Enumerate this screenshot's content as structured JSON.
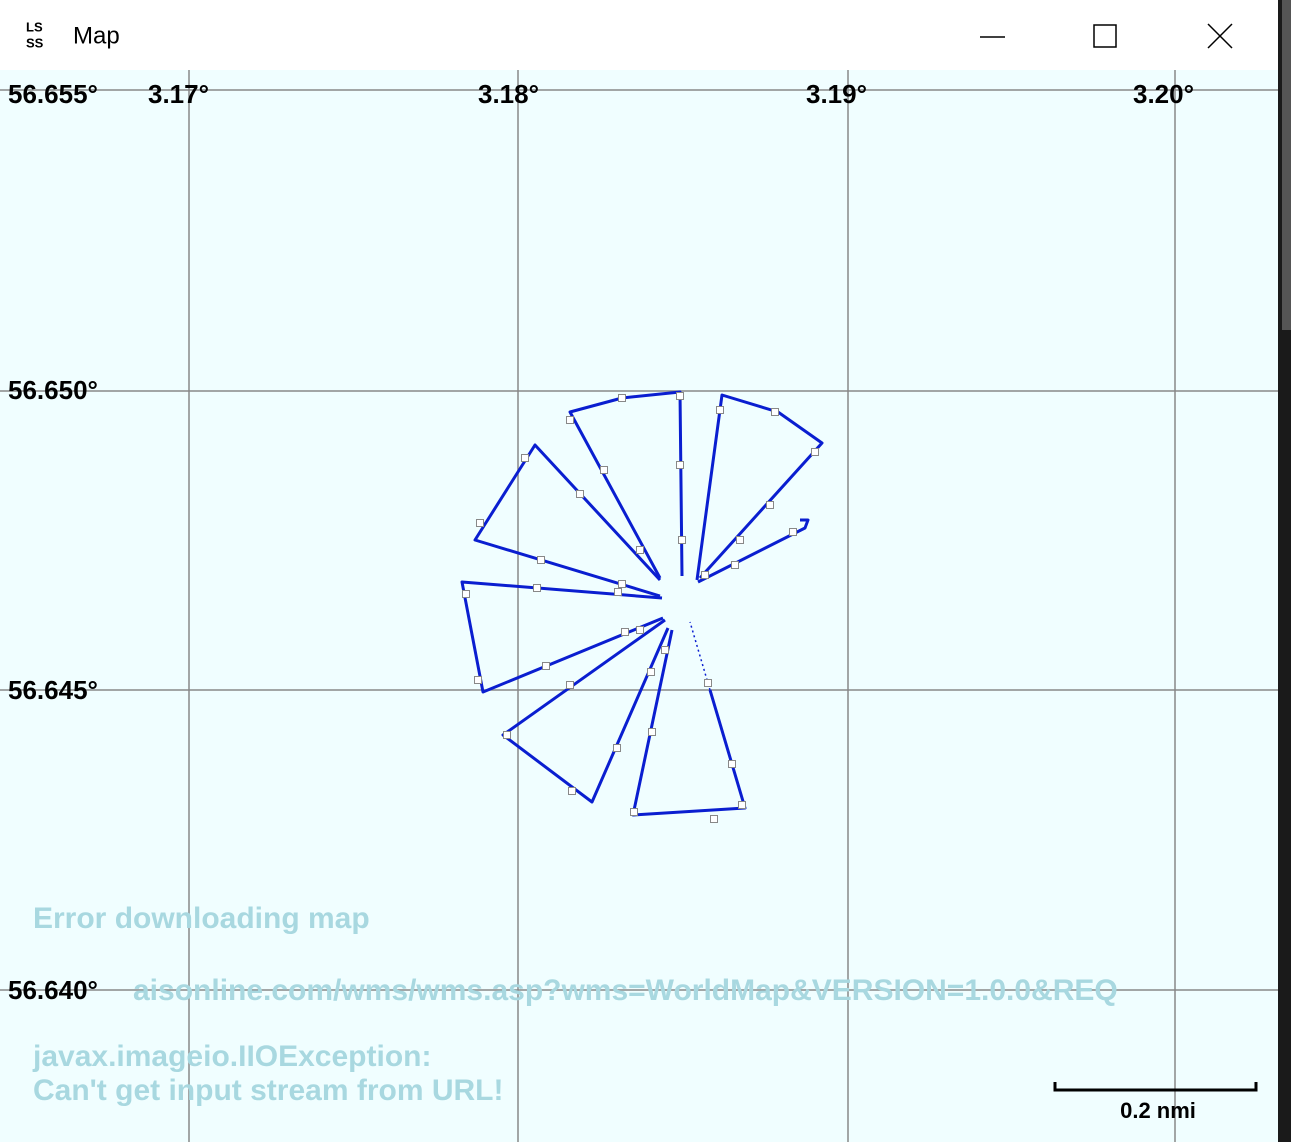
{
  "window": {
    "logo": [
      "LS",
      "SS"
    ],
    "title": "Map"
  },
  "map": {
    "longitude_labels": [
      "3.17°",
      "3.18°",
      "3.19°",
      "3.20°"
    ],
    "latitude_labels": [
      "56.655°",
      "56.650°",
      "56.645°",
      "56.640°"
    ],
    "error_lines": [
      "Error downloading map",
      "aisonline.com/wms/wms.asp?wms=WorldMap&VERSION=1.0.0&REQ",
      "javax.imageio.IIOException:",
      "Can't get input stream from URL!"
    ],
    "scale_label": "0.2 nmi"
  }
}
